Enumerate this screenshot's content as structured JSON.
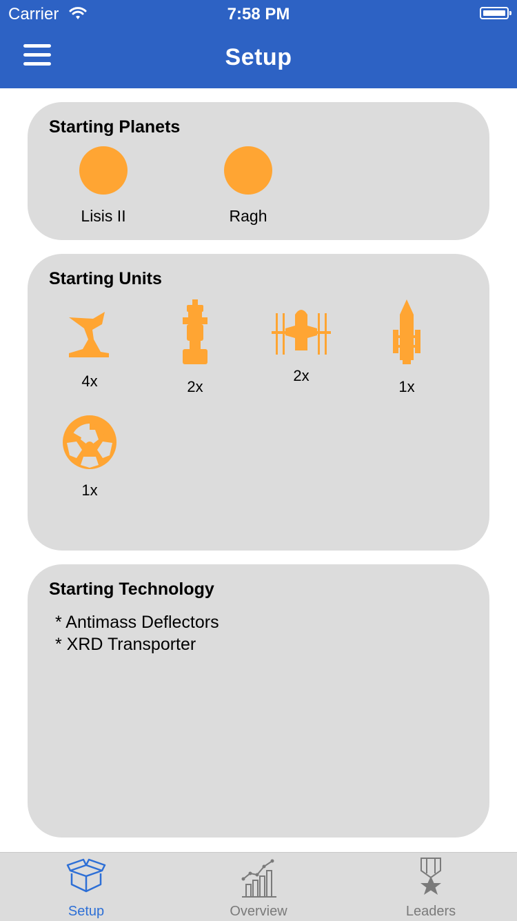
{
  "status_bar": {
    "carrier": "Carrier",
    "time": "7:58 PM"
  },
  "nav": {
    "title": "Setup",
    "menu_icon": "hamburger-icon",
    "background": "#2d62c4"
  },
  "starting_planets": {
    "title": "Starting Planets",
    "planets": [
      {
        "name": "Lisis II",
        "color": "#ffa533"
      },
      {
        "name": "Ragh",
        "color": "#ffa533"
      }
    ]
  },
  "starting_units": {
    "title": "Starting Units",
    "units": [
      {
        "icon": "fighter-icon",
        "count": "4x"
      },
      {
        "icon": "ground-force-icon",
        "count": "2x"
      },
      {
        "icon": "carrier-icon",
        "count": "2x"
      },
      {
        "icon": "cruiser-icon",
        "count": "1x"
      },
      {
        "icon": "space-dock-icon",
        "count": "1x"
      }
    ]
  },
  "starting_technology": {
    "title": "Starting Technology",
    "items": [
      "* Antimass Deflectors",
      "* XRD Transporter"
    ]
  },
  "tab_bar": {
    "tabs": [
      {
        "label": "Setup",
        "icon": "box-icon",
        "active": true
      },
      {
        "label": "Overview",
        "icon": "chart-icon",
        "active": false
      },
      {
        "label": "Leaders",
        "icon": "medal-icon",
        "active": false
      }
    ],
    "active_color": "#2d6fd6",
    "inactive_color": "#7a7a7a"
  }
}
